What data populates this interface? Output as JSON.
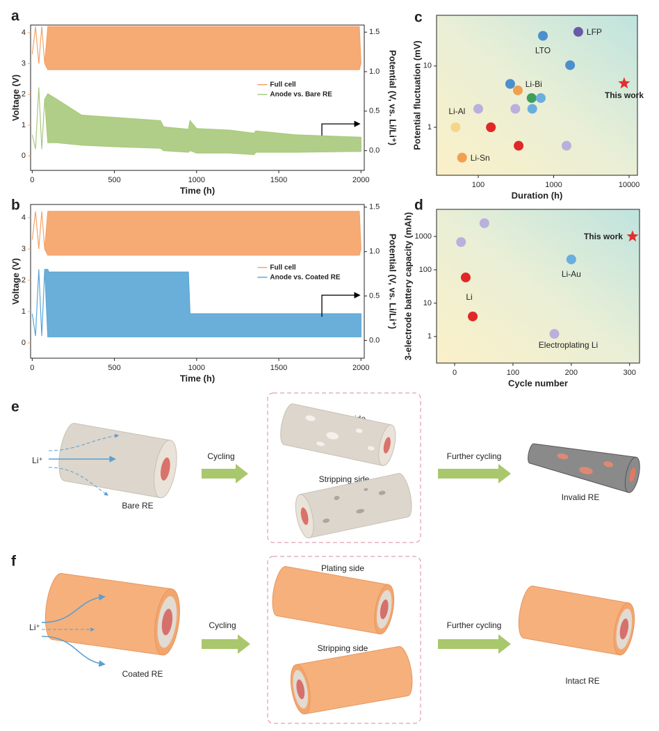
{
  "chart_data": [
    {
      "type": "area",
      "panel": "a",
      "xlabel": "Time (h)",
      "ylabel": "Voltage (V)",
      "y2label": "Potential (V, vs. Li/Li⁺)",
      "xlim": [
        -10,
        2020
      ],
      "xticks": [
        0,
        500,
        1000,
        1500,
        2000
      ],
      "ylim": [
        -0.47,
        4.25
      ],
      "yticks": [
        0,
        1,
        2,
        3,
        4
      ],
      "y2lim": [
        -0.25,
        1.59
      ],
      "y2ticks": [
        {
          "value": 0,
          "label": "0.0"
        },
        0.5,
        {
          "value": 1,
          "label": "1.0"
        },
        1.5
      ],
      "legend": "right",
      "series": [
        {
          "name": "Full cell",
          "color": "#f5a266",
          "x": [
            0,
            20,
            40,
            58,
            76,
            95,
            1990,
            2000
          ],
          "max": [
            3.3,
            4.2,
            3.0,
            4.2,
            3.0,
            4.2,
            4.2,
            3.0
          ],
          "min": [
            3.3,
            4.2,
            3.0,
            4.2,
            3.0,
            2.8,
            2.8,
            3.0
          ]
        },
        {
          "name": "Anode vs. Bare RE",
          "color": "#a9c97b",
          "axis": "y2",
          "x": [
            0,
            20,
            40,
            58,
            76,
            95,
            150,
            300,
            500,
            780,
            800,
            950,
            960,
            1000,
            1200,
            1350,
            1360,
            1600,
            2000
          ],
          "max": [
            0.2,
            0.02,
            0.8,
            0.02,
            0.65,
            0.72,
            0.65,
            0.45,
            0.42,
            0.38,
            0.3,
            0.27,
            0.38,
            0.28,
            0.26,
            0.22,
            0.25,
            0.2,
            0.17
          ],
          "min": [
            0.2,
            0.02,
            0.8,
            0.02,
            0.65,
            0.1,
            0.1,
            0.07,
            0.05,
            0.03,
            0.0,
            -0.02,
            0.0,
            -0.03,
            -0.03,
            -0.05,
            -0.02,
            -0.02,
            -0.01
          ]
        }
      ]
    },
    {
      "type": "area",
      "panel": "b",
      "xlabel": "Time (h)",
      "ylabel": "Voltage (V)",
      "y2label": "Potential (V, vs. Li/Li⁺)",
      "xlim": [
        -10,
        2020
      ],
      "xticks": [
        0,
        500,
        1000,
        1500,
        2000
      ],
      "ylim": [
        -0.49,
        4.42
      ],
      "yticks": [
        0,
        1,
        2,
        3,
        4
      ],
      "y2lim": [
        -0.2,
        1.53
      ],
      "y2ticks": [
        {
          "value": 0,
          "label": "0.0"
        },
        0.5,
        {
          "value": 1,
          "label": "1.0"
        },
        1.5
      ],
      "legend": "right",
      "series": [
        {
          "name": "Full cell",
          "color": "#f5a266",
          "x": [
            0,
            20,
            40,
            58,
            76,
            95,
            1990,
            2000
          ],
          "max": [
            3.3,
            4.2,
            3.0,
            4.2,
            3.0,
            4.2,
            4.2,
            3.0
          ],
          "min": [
            3.3,
            4.2,
            3.0,
            4.2,
            3.0,
            2.8,
            2.8,
            3.0
          ]
        },
        {
          "name": "Anode vs. Coated RE",
          "color": "#5aa6d6",
          "axis": "y2",
          "x": [
            0,
            20,
            40,
            58,
            76,
            95,
            100,
            950,
            960,
            2000
          ],
          "max": [
            0.3,
            0.05,
            0.8,
            0.05,
            0.8,
            0.8,
            0.77,
            0.77,
            0.3,
            0.3
          ],
          "min": [
            0.3,
            0.05,
            0.8,
            0.05,
            0.8,
            0.04,
            0.04,
            0.04,
            0.04,
            0.04
          ]
        }
      ]
    },
    {
      "type": "scatter",
      "panel": "c",
      "xlabel": "Duration (h)",
      "ylabel": "Potential fluctuation (mV)",
      "xscale": "log",
      "yscale": "log",
      "xlim": [
        28,
        12900
      ],
      "xticks": [
        100,
        1000,
        10000
      ],
      "ylim": [
        0.165,
        67
      ],
      "yticks": [
        1,
        10
      ],
      "points": [
        {
          "x": 2120,
          "y": 36,
          "color": "#6a58a8",
          "label": "LFP"
        },
        {
          "x": 720,
          "y": 31,
          "color": "#4d8fcc",
          "label": "LTO"
        },
        {
          "x": 1650,
          "y": 10.3,
          "color": "#4d8fcc"
        },
        {
          "x": 8600,
          "y": 5.2,
          "color": "#e03030",
          "marker": "star",
          "label": "This work"
        },
        {
          "x": 265,
          "y": 5.1,
          "color": "#4d8fcc"
        },
        {
          "x": 335,
          "y": 4.0,
          "color": "#f0a050"
        },
        {
          "x": 510,
          "y": 3.0,
          "color": "#3f9e5a",
          "label": "Li-Bi"
        },
        {
          "x": 675,
          "y": 3.0,
          "color": "#6aaee0"
        },
        {
          "x": 520,
          "y": 2.0,
          "color": "#6aaee0"
        },
        {
          "x": 310,
          "y": 2.0,
          "color": "#b9b0dc"
        },
        {
          "x": 100,
          "y": 2.0,
          "color": "#b9b0dc"
        },
        {
          "x": 50,
          "y": 1.0,
          "color": "#f5d58a",
          "label": "Li-Al"
        },
        {
          "x": 147,
          "y": 1.0,
          "color": "#e02828"
        },
        {
          "x": 343,
          "y": 0.5,
          "color": "#e02828"
        },
        {
          "x": 1480,
          "y": 0.5,
          "color": "#b9b0dc"
        },
        {
          "x": 61,
          "y": 0.32,
          "color": "#f0a050",
          "label": "Li-Sn"
        }
      ]
    },
    {
      "type": "scatter",
      "panel": "d",
      "xlabel": "Cycle number",
      "ylabel": "3-electrode battery capacity (mAh)",
      "yscale": "log",
      "xlim": [
        -31,
        317
      ],
      "xticks": [
        0,
        100,
        200,
        300
      ],
      "ylim": [
        0.16,
        6500
      ],
      "yticks": [
        1,
        10,
        100,
        1000
      ],
      "points": [
        {
          "x": 51,
          "y": 2500,
          "color": "#b9b0dc"
        },
        {
          "x": 11,
          "y": 680,
          "color": "#b9b0dc"
        },
        {
          "x": 19,
          "y": 59,
          "color": "#e02828"
        },
        {
          "x": 31,
          "y": 4.0,
          "color": "#e02828",
          "label": "Li"
        },
        {
          "x": 305,
          "y": 1000,
          "color": "#e03030",
          "marker": "star",
          "label": "This work"
        },
        {
          "x": 200,
          "y": 205,
          "color": "#6aaee0",
          "label": "Li-Au"
        },
        {
          "x": 171,
          "y": 1.2,
          "color": "#b9b0dc",
          "label": "Electroplating Li"
        }
      ]
    }
  ],
  "diagram_e": {
    "panel": "e",
    "ion": "Li⁺",
    "start": "Bare RE",
    "step1": "Cycling",
    "plating": "Plating side",
    "stripping": "Stripping side",
    "step2": "Further cycling",
    "end": "Invalid RE"
  },
  "diagram_f": {
    "panel": "f",
    "ion": "Li⁺",
    "start": "Coated RE",
    "step1": "Cycling",
    "plating": "Plating side",
    "stripping": "Stripping side",
    "step2": "Further cycling",
    "end": "Intact RE"
  }
}
